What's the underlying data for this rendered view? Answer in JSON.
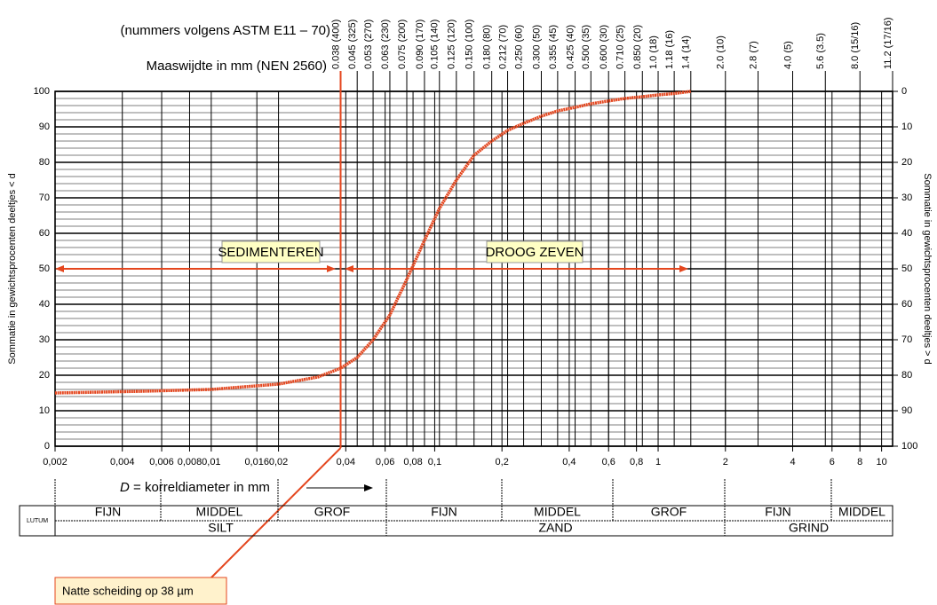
{
  "chart_data": {
    "type": "line",
    "header": [
      "(nummers volgens ASTM E11 – 70)",
      "Maaswijdte in mm (NEN 2560)"
    ],
    "xlabel": {
      "italic": "D",
      "text": "= korreldiameter in mm"
    },
    "ylabel": "Sommatie in gewichtsprocenten deeltjes < d",
    "y2label": "Sommatie in gewichtsprocenten deeltjes > d",
    "xscale": "log",
    "xlim": [
      0.002,
      11.2
    ],
    "ylim": [
      0,
      100
    ],
    "y2lim": [
      100,
      0
    ],
    "grid": true,
    "xticks": [
      {
        "value": 0.002,
        "label": "0,002"
      },
      {
        "value": 0.004,
        "label": "0,004"
      },
      {
        "value": 0.006,
        "label": "0,006"
      },
      {
        "value": 0.008,
        "label": "0,008"
      },
      {
        "value": 0.01,
        "label": "0,01"
      },
      {
        "value": 0.016,
        "label": "0,016"
      },
      {
        "value": 0.02,
        "label": "0,02"
      },
      {
        "value": 0.04,
        "label": "0,04"
      },
      {
        "value": 0.06,
        "label": "0,06"
      },
      {
        "value": 0.08,
        "label": "0,08"
      },
      {
        "value": 0.1,
        "label": "0,1"
      },
      {
        "value": 0.2,
        "label": "0,2"
      },
      {
        "value": 0.4,
        "label": "0,4"
      },
      {
        "value": 0.6,
        "label": "0,6"
      },
      {
        "value": 0.8,
        "label": "0,8"
      },
      1,
      2,
      4,
      6,
      8,
      10
    ],
    "x2ticks": [
      {
        "value": 0.038,
        "label": "0.038 (400)"
      },
      {
        "value": 0.045,
        "label": "0.045 (325)"
      },
      {
        "value": 0.053,
        "label": "0.053 (270)"
      },
      {
        "value": 0.063,
        "label": "0.063 (230)"
      },
      {
        "value": 0.075,
        "label": "0.075 (200)"
      },
      {
        "value": 0.09,
        "label": "0.090 (170)"
      },
      {
        "value": 0.105,
        "label": "0.105 (140)"
      },
      {
        "value": 0.125,
        "label": "0.125 (120)"
      },
      {
        "value": 0.15,
        "label": "0.150 (100)"
      },
      {
        "value": 0.18,
        "label": "0.180 (80)"
      },
      {
        "value": 0.212,
        "label": "0.212 (70)"
      },
      {
        "value": 0.25,
        "label": "0.250 (60)"
      },
      {
        "value": 0.3,
        "label": "0.300 (50)"
      },
      {
        "value": 0.355,
        "label": "0.355 (45)"
      },
      {
        "value": 0.425,
        "label": "0.425 (40)"
      },
      {
        "value": 0.5,
        "label": "0.500 (35)"
      },
      {
        "value": 0.6,
        "label": "0.600 (30)"
      },
      {
        "value": 0.71,
        "label": "0.710 (25)"
      },
      {
        "value": 0.85,
        "label": "0.850 (20)"
      },
      {
        "value": 1.0,
        "label": "1.0 (18)"
      },
      {
        "value": 1.18,
        "label": "1.18 (16)"
      },
      {
        "value": 1.4,
        "label": "1.4 (14)"
      },
      {
        "value": 2.0,
        "label": "2.0 (10)"
      },
      {
        "value": 2.8,
        "label": "2.8 (7)"
      },
      {
        "value": 4.0,
        "label": "4.0 (5)"
      },
      {
        "value": 5.6,
        "label": "5.6 (3.5)"
      },
      {
        "value": 8.0,
        "label": "8.0 (15/16)"
      },
      {
        "value": 11.2,
        "label": "11.2 (17/16)"
      }
    ],
    "yticks": [
      0,
      10,
      20,
      30,
      40,
      50,
      60,
      70,
      80,
      90,
      100
    ],
    "y2ticks": [
      0,
      10,
      20,
      30,
      40,
      50,
      60,
      70,
      80,
      90,
      100
    ],
    "series": [
      {
        "color": "#e4461e",
        "x": [
          0.002,
          0.005,
          0.01,
          0.02,
          0.03,
          0.038,
          0.045,
          0.053,
          0.063,
          0.075,
          0.09,
          0.105,
          0.125,
          0.15,
          0.18,
          0.212,
          0.25,
          0.3,
          0.355,
          0.425,
          0.5,
          0.6,
          0.71,
          0.85,
          1.0,
          1.18,
          1.4
        ],
        "values": [
          15,
          15.5,
          16,
          17.5,
          19.5,
          22,
          25,
          30,
          37,
          47,
          58,
          67,
          75,
          82,
          86,
          89,
          91,
          93,
          94.5,
          95.5,
          96.5,
          97.3,
          98,
          98.5,
          99,
          99.4,
          100
        ]
      }
    ],
    "annotations": [
      "SEDIMENTEREN",
      "DROOG ZEVEN",
      "Natte scheiding op 38 µm"
    ]
  },
  "classification": {
    "lutum": "LUTUM",
    "fractions": [
      {
        "name": "SILT",
        "subclasses": [
          "FIJN",
          "MIDDEL",
          "GROF"
        ]
      },
      {
        "name": "ZAND",
        "subclasses": [
          "FIJN",
          "MIDDEL",
          "GROF"
        ]
      },
      {
        "name": "GRIND",
        "subclasses": [
          "FIJN",
          "MIDDEL"
        ]
      }
    ]
  }
}
